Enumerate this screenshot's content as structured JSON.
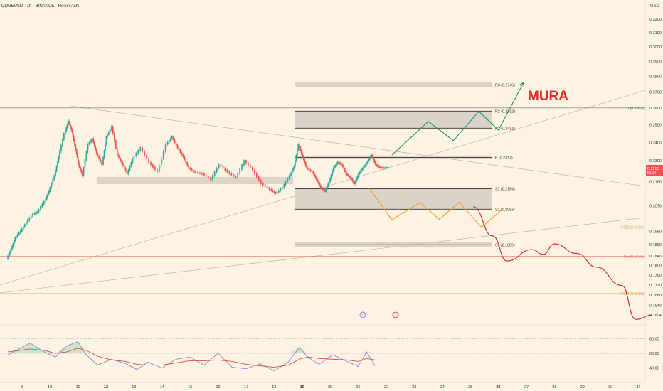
{
  "header": {
    "symbol": "DOGEUSD · 1h · BINANCE · Heikin Ashi",
    "currency": "USD"
  },
  "watermark": "MURA",
  "colors": {
    "background": "#fdf3e3",
    "up_candle": "#26a69a",
    "down_candle": "#ef5350",
    "bullish_path": "#1f8a6c",
    "mid_path": "#f29b1d",
    "bearish_path": "#d62020",
    "rsi_line": "#8e84d6",
    "rsi_ma": "#d43b3b",
    "watermark": "#e32626",
    "price_label": "#ef5350"
  },
  "chart_data": {
    "type": "line",
    "y_scale": "log",
    "ylim": [
      0.1585,
      0.3265
    ],
    "x_axis_days": [
      "9",
      "10",
      "11",
      "12",
      "13",
      "14",
      "15",
      "16",
      "17",
      "18",
      "19",
      "20",
      "21",
      "22",
      "23",
      "24",
      "25",
      "26",
      "27",
      "28",
      "29",
      "30",
      "31"
    ],
    "bold_days": [
      "12",
      "19",
      "26"
    ],
    "y_ticks": [
      "0.3200",
      "0.3100",
      "0.3000",
      "0.2900",
      "0.2800",
      "0.2700",
      "0.2600",
      "0.2500",
      "0.2400",
      "0.2300",
      "0.2190",
      "0.2070",
      "0.1950",
      "0.1890",
      "0.1840",
      "0.1800",
      "0.1760",
      "0.1720",
      "0.1680",
      "0.1640",
      "0.1604"
    ],
    "current_price": {
      "value": "0.2263",
      "countdown": "53:34"
    },
    "pivot_levels": [
      {
        "label": "R3 (0.2745)",
        "value": 0.2745
      },
      {
        "label": "R2 (0.2582)",
        "value": 0.2582
      },
      {
        "label": "R1 (0.2481)",
        "value": 0.2481
      },
      {
        "label": "P (0.2317)",
        "value": 0.2317
      },
      {
        "label": "S1 (0.2154)",
        "value": 0.2154
      },
      {
        "label": "S2 (0.2053)",
        "value": 0.2053
      },
      {
        "label": "S3 (0.1889)",
        "value": 0.1889
      }
    ],
    "fib_levels": [
      {
        "label": "0 (0.2601)",
        "value": 0.2601,
        "color": "#555555"
      },
      {
        "label": "0.382 (0.1968)",
        "value": 0.1968,
        "color": "#c9a86a"
      },
      {
        "label": "0.5 (0.1839)",
        "value": 0.1839,
        "color": "#e05555"
      },
      {
        "label": "0.618 (0.1686)",
        "value": 0.1686,
        "color": "#e0a060"
      }
    ],
    "price_series_day": [
      8.5,
      8.65,
      8.8,
      9.0,
      9.2,
      9.45,
      9.6,
      9.85,
      10.0,
      10.2,
      10.35,
      10.55,
      10.7,
      10.82,
      10.95,
      11.05,
      11.2,
      11.4,
      11.55,
      11.7,
      11.9,
      12.05,
      12.25,
      12.45,
      12.6,
      12.8,
      13.0,
      13.3,
      13.6,
      13.9,
      14.2,
      14.4,
      14.6,
      14.8,
      15.0,
      15.2,
      15.5,
      15.8,
      16.1,
      16.4,
      16.7,
      17.0,
      17.3,
      17.6,
      17.9,
      18.1,
      18.35,
      18.6,
      18.75,
      18.9,
      19.05,
      19.2,
      19.4,
      19.55,
      19.7,
      19.85,
      20.0,
      20.15,
      20.3,
      20.45,
      20.6,
      20.75,
      20.9,
      21.05,
      21.2,
      21.35,
      21.5,
      21.65,
      21.8,
      21.95,
      22.1
    ],
    "price_series_value": [
      0.183,
      0.187,
      0.192,
      0.195,
      0.199,
      0.203,
      0.204,
      0.209,
      0.214,
      0.222,
      0.232,
      0.245,
      0.252,
      0.246,
      0.236,
      0.228,
      0.222,
      0.239,
      0.242,
      0.234,
      0.228,
      0.243,
      0.249,
      0.233,
      0.229,
      0.223,
      0.231,
      0.237,
      0.229,
      0.224,
      0.239,
      0.243,
      0.237,
      0.232,
      0.226,
      0.224,
      0.223,
      0.22,
      0.228,
      0.224,
      0.221,
      0.23,
      0.225,
      0.218,
      0.215,
      0.213,
      0.216,
      0.222,
      0.227,
      0.239,
      0.232,
      0.226,
      0.224,
      0.22,
      0.216,
      0.214,
      0.219,
      0.226,
      0.229,
      0.228,
      0.223,
      0.221,
      0.218,
      0.223,
      0.226,
      0.229,
      0.233,
      0.228,
      0.2263,
      0.226,
      0.2263
    ],
    "projection_bullish": {
      "day": [
        22.2,
        23.5,
        24.4,
        25.3,
        26.0,
        26.9
      ],
      "value": [
        0.233,
        0.252,
        0.241,
        0.258,
        0.247,
        0.276
      ]
    },
    "projection_mid": {
      "day": [
        21.4,
        22.2,
        23.2,
        23.9,
        24.6,
        25.4,
        26.2
      ],
      "value": [
        0.2155,
        0.2003,
        0.2085,
        0.2005,
        0.2087,
        0.1968,
        0.206
      ]
    },
    "projection_bearish": {
      "day": [
        25.1,
        25.8,
        26.3,
        27.2,
        27.6,
        28.0,
        28.8,
        29.5,
        30.4,
        30.9,
        31.5
      ],
      "value": [
        0.2065,
        0.1928,
        0.1819,
        0.1868,
        0.1847,
        0.1893,
        0.1851,
        0.1793,
        0.1718,
        0.1587,
        0.1603
      ]
    },
    "rsi": {
      "levels": [
        "80.00",
        "60.00",
        "40.00"
      ],
      "day": [
        8.5,
        8.9,
        9.3,
        9.8,
        10.2,
        10.6,
        11.0,
        11.3,
        11.7,
        12.2,
        12.7,
        13.1,
        13.5,
        14.0,
        14.5,
        15.0,
        15.5,
        16.0,
        16.5,
        17.0,
        17.5,
        18.0,
        18.5,
        18.9,
        19.2,
        19.6,
        20.1,
        20.6,
        21.0,
        21.3,
        21.6
      ],
      "value": [
        58,
        66,
        74,
        62,
        55,
        70,
        76,
        58,
        44,
        52,
        46,
        38,
        48,
        40,
        52,
        55,
        44,
        60,
        41,
        39,
        46,
        36,
        48,
        68,
        55,
        45,
        58,
        49,
        42,
        62,
        43
      ],
      "ma_value": [
        62,
        64,
        66,
        64,
        60,
        62,
        67,
        64,
        56,
        51,
        49,
        45,
        44,
        44,
        47,
        50,
        50,
        51,
        49,
        45,
        43,
        41,
        44,
        52,
        55,
        53,
        52,
        51,
        49,
        53,
        51
      ]
    }
  }
}
